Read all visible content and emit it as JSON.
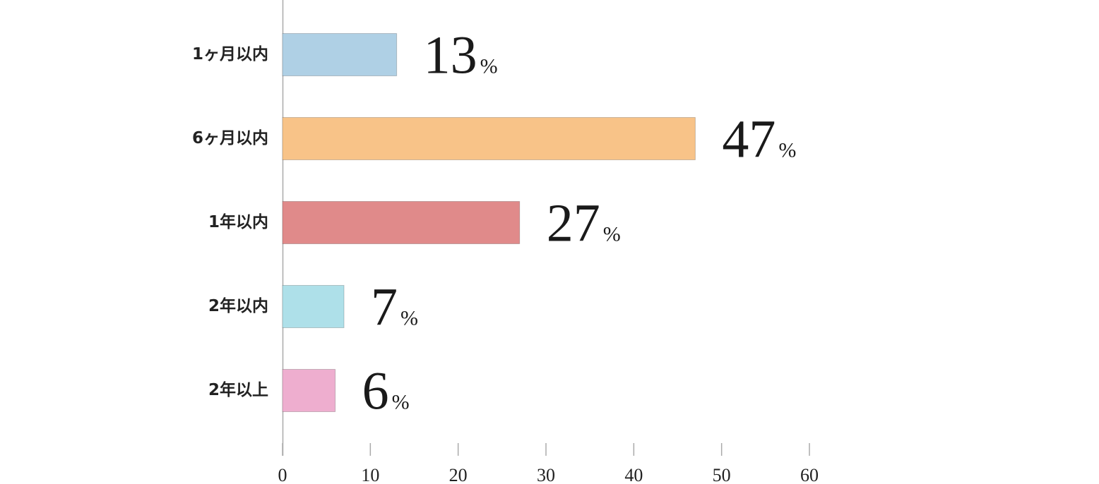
{
  "chart_data": {
    "type": "bar",
    "orientation": "horizontal",
    "categories": [
      "1ヶ月以内",
      "6ヶ月以内",
      "1年以内",
      "2年以内",
      "2年以上"
    ],
    "values": [
      13,
      47,
      27,
      7,
      6
    ],
    "value_suffix": "%",
    "colors": [
      "#afd0e5",
      "#f8c388",
      "#e08a8a",
      "#aee0e9",
      "#eeaecf"
    ],
    "xlim": [
      0,
      60
    ],
    "xticks": [
      0,
      10,
      20,
      30,
      40,
      50,
      60
    ]
  }
}
